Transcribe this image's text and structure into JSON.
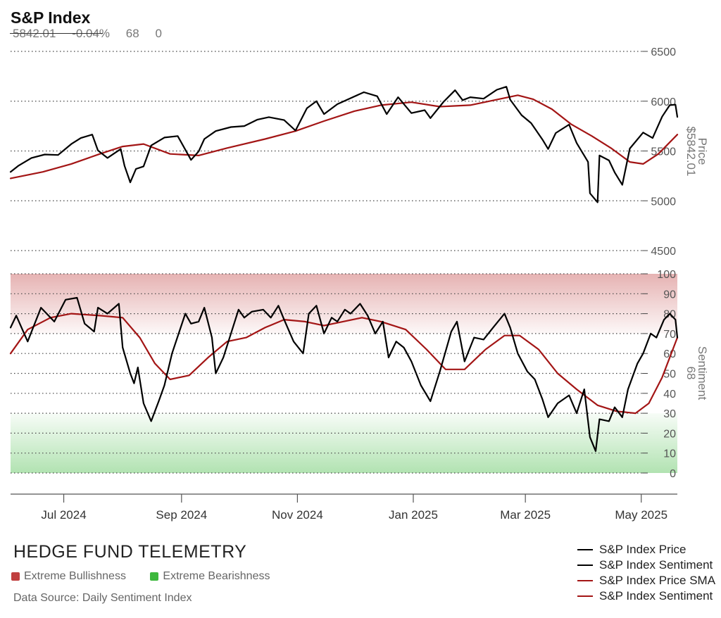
{
  "header": {
    "title": "S&P Index",
    "price": "5842.01",
    "change": "-0.04%",
    "sentiment": "68",
    "extra": "0"
  },
  "footer": {
    "brand": "HEDGE FUND TELEMETRY",
    "bull_label": "Extreme Bullishness",
    "bear_label": "Extreme Bearishness",
    "bull_color": "#c04040",
    "bear_color": "#3db83d",
    "source": "Data Source: Daily Sentiment Index"
  },
  "legend": [
    {
      "label": "S&P Index Price",
      "color": "#000000"
    },
    {
      "label": "S&P Index Sentiment",
      "color": "#000000"
    },
    {
      "label": "S&P Index Price SMA",
      "color": "#a31515"
    },
    {
      "label": "S&P Index Sentiment",
      "color": "#a31515"
    }
  ],
  "chart_data": [
    {
      "type": "line",
      "title": "S&P Index",
      "ylabel": "Price",
      "ylabel_value": "$5842.01",
      "ylim": [
        4500,
        6500
      ],
      "yticks": [
        4500,
        5000,
        5500,
        6000,
        6500
      ],
      "ytick_labels": [
        "4500",
        "5000",
        "5500",
        "6000",
        "6500"
      ],
      "grid": "horizontal dotted",
      "x_range": [
        "2024-06-03",
        "2025-05-20"
      ],
      "xtick_labels": [
        "Jul 2024",
        "Sep 2024",
        "Nov 2024",
        "Jan 2025",
        "Mar 2025",
        "May 2025"
      ],
      "xtick_dates": [
        "2024-07-01",
        "2024-09-01",
        "2024-11-01",
        "2025-01-01",
        "2025-03-01",
        "2025-05-01"
      ],
      "series": [
        {
          "name": "S&P Index Price",
          "color": "#000000",
          "points": [
            [
              "2024-06-03",
              5290
            ],
            [
              "2024-06-07",
              5350
            ],
            [
              "2024-06-14",
              5430
            ],
            [
              "2024-06-21",
              5465
            ],
            [
              "2024-06-28",
              5460
            ],
            [
              "2024-07-05",
              5570
            ],
            [
              "2024-07-10",
              5630
            ],
            [
              "2024-07-16",
              5665
            ],
            [
              "2024-07-19",
              5505
            ],
            [
              "2024-07-24",
              5430
            ],
            [
              "2024-07-31",
              5520
            ],
            [
              "2024-08-02",
              5350
            ],
            [
              "2024-08-05",
              5185
            ],
            [
              "2024-08-08",
              5320
            ],
            [
              "2024-08-12",
              5345
            ],
            [
              "2024-08-16",
              5555
            ],
            [
              "2024-08-23",
              5635
            ],
            [
              "2024-08-30",
              5650
            ],
            [
              "2024-09-06",
              5410
            ],
            [
              "2024-09-10",
              5495
            ],
            [
              "2024-09-13",
              5620
            ],
            [
              "2024-09-19",
              5700
            ],
            [
              "2024-09-27",
              5740
            ],
            [
              "2024-10-04",
              5750
            ],
            [
              "2024-10-11",
              5815
            ],
            [
              "2024-10-17",
              5840
            ],
            [
              "2024-10-25",
              5810
            ],
            [
              "2024-10-31",
              5705
            ],
            [
              "2024-11-06",
              5930
            ],
            [
              "2024-11-11",
              6000
            ],
            [
              "2024-11-15",
              5870
            ],
            [
              "2024-11-22",
              5970
            ],
            [
              "2024-11-29",
              6030
            ],
            [
              "2024-12-06",
              6090
            ],
            [
              "2024-12-13",
              6050
            ],
            [
              "2024-12-18",
              5870
            ],
            [
              "2024-12-24",
              6040
            ],
            [
              "2024-12-31",
              5880
            ],
            [
              "2025-01-07",
              5910
            ],
            [
              "2025-01-10",
              5830
            ],
            [
              "2025-01-17",
              5995
            ],
            [
              "2025-01-23",
              6110
            ],
            [
              "2025-01-27",
              6010
            ],
            [
              "2025-01-31",
              6040
            ],
            [
              "2025-02-07",
              6025
            ],
            [
              "2025-02-14",
              6115
            ],
            [
              "2025-02-19",
              6145
            ],
            [
              "2025-02-21",
              6015
            ],
            [
              "2025-02-27",
              5860
            ],
            [
              "2025-03-04",
              5780
            ],
            [
              "2025-03-10",
              5615
            ],
            [
              "2025-03-13",
              5520
            ],
            [
              "2025-03-17",
              5680
            ],
            [
              "2025-03-24",
              5765
            ],
            [
              "2025-03-28",
              5580
            ],
            [
              "2025-04-03",
              5390
            ],
            [
              "2025-04-04",
              5075
            ],
            [
              "2025-04-08",
              4985
            ],
            [
              "2025-04-09",
              5455
            ],
            [
              "2025-04-14",
              5405
            ],
            [
              "2025-04-17",
              5285
            ],
            [
              "2025-04-21",
              5160
            ],
            [
              "2025-04-25",
              5525
            ],
            [
              "2025-05-02",
              5685
            ],
            [
              "2025-05-07",
              5630
            ],
            [
              "2025-05-12",
              5845
            ],
            [
              "2025-05-16",
              5960
            ],
            [
              "2025-05-19",
              5965
            ],
            [
              "2025-05-20",
              5842
            ]
          ]
        },
        {
          "name": "S&P Index Price SMA",
          "color": "#a31515",
          "points": [
            [
              "2024-06-03",
              5225
            ],
            [
              "2024-06-20",
              5290
            ],
            [
              "2024-07-05",
              5370
            ],
            [
              "2024-07-20",
              5470
            ],
            [
              "2024-08-01",
              5545
            ],
            [
              "2024-08-12",
              5570
            ],
            [
              "2024-08-26",
              5470
            ],
            [
              "2024-09-10",
              5455
            ],
            [
              "2024-09-25",
              5530
            ],
            [
              "2024-10-15",
              5620
            ],
            [
              "2024-10-31",
              5700
            ],
            [
              "2024-11-15",
              5800
            ],
            [
              "2024-12-01",
              5900
            ],
            [
              "2024-12-15",
              5960
            ],
            [
              "2024-12-31",
              5990
            ],
            [
              "2025-01-15",
              5945
            ],
            [
              "2025-01-31",
              5960
            ],
            [
              "2025-02-15",
              6020
            ],
            [
              "2025-02-25",
              6060
            ],
            [
              "2025-03-05",
              6020
            ],
            [
              "2025-03-15",
              5920
            ],
            [
              "2025-03-25",
              5770
            ],
            [
              "2025-04-05",
              5650
            ],
            [
              "2025-04-15",
              5530
            ],
            [
              "2025-04-25",
              5390
            ],
            [
              "2025-05-02",
              5370
            ],
            [
              "2025-05-10",
              5470
            ],
            [
              "2025-05-20",
              5665
            ]
          ]
        }
      ]
    },
    {
      "type": "line",
      "ylabel": "Sentiment",
      "ylabel_value": "68",
      "ylim": [
        0,
        100
      ],
      "yticks": [
        0,
        10,
        20,
        30,
        40,
        50,
        60,
        70,
        80,
        90,
        100
      ],
      "ytick_labels": [
        "0",
        "10",
        "20",
        "30",
        "40",
        "50",
        "60",
        "70",
        "80",
        "90",
        "100"
      ],
      "grid": "horizontal dotted",
      "zones": [
        {
          "label": "Extreme Bullishness",
          "from": 70,
          "to": 100,
          "color": "#c04040"
        },
        {
          "label": "Extreme Bearishness",
          "from": 0,
          "to": 30,
          "color": "#3db83d"
        }
      ],
      "series": [
        {
          "name": "S&P Index Sentiment",
          "color": "#000000",
          "points": [
            [
              "2024-06-03",
              73
            ],
            [
              "2024-06-06",
              79
            ],
            [
              "2024-06-12",
              66
            ],
            [
              "2024-06-19",
              83
            ],
            [
              "2024-06-26",
              76
            ],
            [
              "2024-07-02",
              87
            ],
            [
              "2024-07-08",
              88
            ],
            [
              "2024-07-12",
              75
            ],
            [
              "2024-07-17",
              71
            ],
            [
              "2024-07-19",
              83
            ],
            [
              "2024-07-24",
              80
            ],
            [
              "2024-07-30",
              85
            ],
            [
              "2024-08-01",
              63
            ],
            [
              "2024-08-05",
              50
            ],
            [
              "2024-08-07",
              45
            ],
            [
              "2024-08-09",
              53
            ],
            [
              "2024-08-12",
              35
            ],
            [
              "2024-08-16",
              26
            ],
            [
              "2024-08-20",
              36
            ],
            [
              "2024-08-23",
              44
            ],
            [
              "2024-08-27",
              60
            ],
            [
              "2024-09-03",
              80
            ],
            [
              "2024-09-06",
              75
            ],
            [
              "2024-09-10",
              76
            ],
            [
              "2024-09-13",
              83
            ],
            [
              "2024-09-17",
              68
            ],
            [
              "2024-09-19",
              50
            ],
            [
              "2024-09-23",
              58
            ],
            [
              "2024-09-27",
              70
            ],
            [
              "2024-10-01",
              82
            ],
            [
              "2024-10-04",
              78
            ],
            [
              "2024-10-08",
              81
            ],
            [
              "2024-10-14",
              82
            ],
            [
              "2024-10-18",
              78
            ],
            [
              "2024-10-22",
              84
            ],
            [
              "2024-10-25",
              77
            ],
            [
              "2024-10-30",
              66
            ],
            [
              "2024-11-04",
              60
            ],
            [
              "2024-11-07",
              80
            ],
            [
              "2024-11-11",
              84
            ],
            [
              "2024-11-15",
              70
            ],
            [
              "2024-11-19",
              78
            ],
            [
              "2024-11-22",
              76
            ],
            [
              "2024-11-26",
              82
            ],
            [
              "2024-11-29",
              80
            ],
            [
              "2024-12-04",
              85
            ],
            [
              "2024-12-08",
              79
            ],
            [
              "2024-12-12",
              70
            ],
            [
              "2024-12-16",
              76
            ],
            [
              "2024-12-19",
              58
            ],
            [
              "2024-12-23",
              66
            ],
            [
              "2024-12-27",
              63
            ],
            [
              "2024-12-31",
              56
            ],
            [
              "2025-01-05",
              44
            ],
            [
              "2025-01-10",
              36
            ],
            [
              "2025-01-15",
              51
            ],
            [
              "2025-01-21",
              71
            ],
            [
              "2025-01-24",
              76
            ],
            [
              "2025-01-28",
              56
            ],
            [
              "2025-02-02",
              68
            ],
            [
              "2025-02-07",
              67
            ],
            [
              "2025-02-12",
              73
            ],
            [
              "2025-02-18",
              80
            ],
            [
              "2025-02-21",
              73
            ],
            [
              "2025-02-25",
              60
            ],
            [
              "2025-03-02",
              51
            ],
            [
              "2025-03-06",
              47
            ],
            [
              "2025-03-10",
              37
            ],
            [
              "2025-03-13",
              28
            ],
            [
              "2025-03-18",
              35
            ],
            [
              "2025-03-24",
              39
            ],
            [
              "2025-03-28",
              30
            ],
            [
              "2025-04-01",
              42
            ],
            [
              "2025-04-04",
              18
            ],
            [
              "2025-04-07",
              11
            ],
            [
              "2025-04-09",
              27
            ],
            [
              "2025-04-14",
              26
            ],
            [
              "2025-04-17",
              33
            ],
            [
              "2025-04-21",
              28
            ],
            [
              "2025-04-24",
              42
            ],
            [
              "2025-04-29",
              55
            ],
            [
              "2025-05-02",
              60
            ],
            [
              "2025-05-06",
              70
            ],
            [
              "2025-05-09",
              68
            ],
            [
              "2025-05-13",
              77
            ],
            [
              "2025-05-16",
              80
            ],
            [
              "2025-05-19",
              77
            ],
            [
              "2025-05-20",
              68
            ]
          ]
        },
        {
          "name": "S&P Index Sentiment",
          "color": "#a31515",
          "points": [
            [
              "2024-06-03",
              60
            ],
            [
              "2024-06-12",
              72
            ],
            [
              "2024-06-24",
              78
            ],
            [
              "2024-07-05",
              80
            ],
            [
              "2024-07-20",
              79
            ],
            [
              "2024-08-01",
              78
            ],
            [
              "2024-08-10",
              68
            ],
            [
              "2024-08-18",
              55
            ],
            [
              "2024-08-26",
              47
            ],
            [
              "2024-09-05",
              49
            ],
            [
              "2024-09-15",
              58
            ],
            [
              "2024-09-25",
              66
            ],
            [
              "2024-10-05",
              68
            ],
            [
              "2024-10-15",
              73
            ],
            [
              "2024-10-25",
              77
            ],
            [
              "2024-11-05",
              76
            ],
            [
              "2024-11-15",
              74
            ],
            [
              "2024-11-25",
              76
            ],
            [
              "2024-12-05",
              78
            ],
            [
              "2024-12-15",
              76
            ],
            [
              "2024-12-28",
              72
            ],
            [
              "2025-01-08",
              62
            ],
            [
              "2025-01-18",
              52
            ],
            [
              "2025-01-28",
              52
            ],
            [
              "2025-02-08",
              62
            ],
            [
              "2025-02-18",
              69
            ],
            [
              "2025-02-26",
              69
            ],
            [
              "2025-03-08",
              62
            ],
            [
              "2025-03-18",
              50
            ],
            [
              "2025-03-28",
              42
            ],
            [
              "2025-04-08",
              34
            ],
            [
              "2025-04-18",
              31
            ],
            [
              "2025-04-28",
              30
            ],
            [
              "2025-05-05",
              35
            ],
            [
              "2025-05-12",
              48
            ],
            [
              "2025-05-20",
              68
            ]
          ]
        }
      ]
    }
  ]
}
